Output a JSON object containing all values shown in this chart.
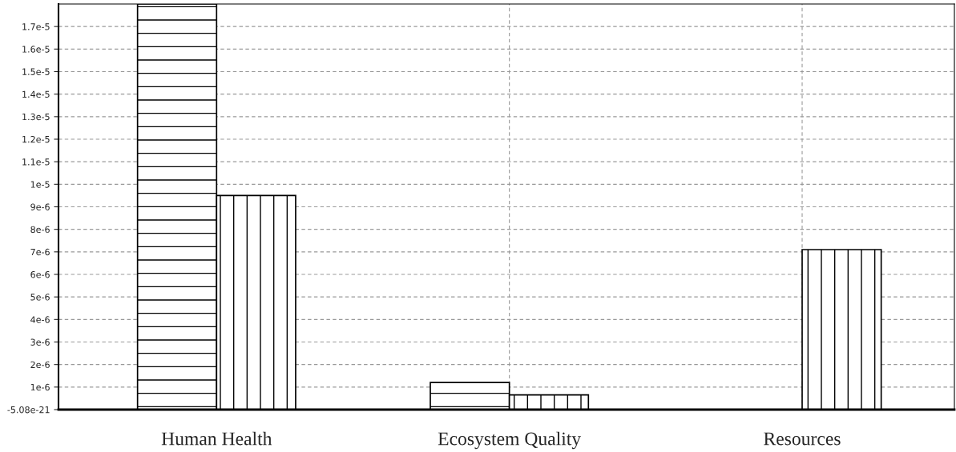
{
  "chart_data": {
    "type": "bar",
    "categories": [
      "Human Health",
      "Ecosystem Quality",
      "Resources"
    ],
    "series": [
      {
        "color": "#000000",
        "values": [
          1.8e-05,
          1.2e-06,
          null
        ]
      },
      {
        "color": "#000000",
        "values": [
          9.5e-06,
          6.5e-07,
          7.1e-06
        ]
      }
    ],
    "ylim": [
      -5.08e-21,
      1.8e-05
    ],
    "yticks": [
      {
        "value": -5.08e-21,
        "label": "-5.08e-21"
      },
      {
        "value": 1e-06,
        "label": "1e-6"
      },
      {
        "value": 2e-06,
        "label": "2e-6"
      },
      {
        "value": 3e-06,
        "label": "3e-6"
      },
      {
        "value": 4e-06,
        "label": "4e-6"
      },
      {
        "value": 5e-06,
        "label": "5e-6"
      },
      {
        "value": 6e-06,
        "label": "6e-6"
      },
      {
        "value": 7e-06,
        "label": "7e-6"
      },
      {
        "value": 8e-06,
        "label": "8e-6"
      },
      {
        "value": 9e-06,
        "label": "9e-6"
      },
      {
        "value": 1e-05,
        "label": "1e-5"
      },
      {
        "value": 1.1e-05,
        "label": "1.1e-5"
      },
      {
        "value": 1.2e-05,
        "label": "1.2e-5"
      },
      {
        "value": 1.3e-05,
        "label": "1.3e-5"
      },
      {
        "value": 1.4e-05,
        "label": "1.4e-5"
      },
      {
        "value": 1.5e-05,
        "label": "1.5e-5"
      },
      {
        "value": 1.6e-05,
        "label": "1.6e-5"
      },
      {
        "value": 1.7e-05,
        "label": "1.7e-5"
      }
    ],
    "grid": true
  }
}
